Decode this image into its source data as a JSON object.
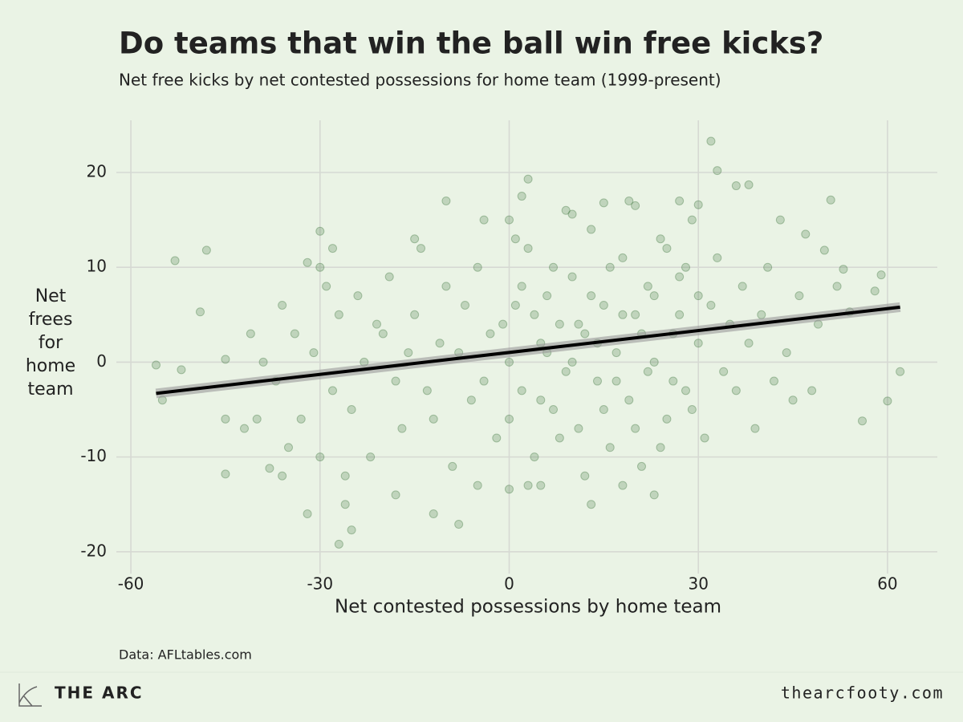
{
  "chart_data": {
    "type": "scatter",
    "title": "Do teams that win the ball win free kicks?",
    "subtitle": "Net free kicks by net contested possessions for home team (1999-present)",
    "x_label": "Net contested possessions by home team",
    "y_label": [
      "Net",
      "frees",
      "for",
      "home",
      "team"
    ],
    "source": "Data: AFLtables.com",
    "brand": "THE ARC",
    "website": "thearcfooty.com",
    "color": "#2e6b2e",
    "grid": true,
    "xlim": [
      -62.3,
      67.9
    ],
    "ylim": [
      -22.3,
      25.5
    ],
    "xticks": [
      -60,
      -30,
      0,
      30,
      60
    ],
    "yticks": [
      -20,
      -10,
      0,
      10,
      20
    ],
    "x": [
      -56,
      -53,
      -52,
      -55,
      -48,
      -49,
      -45,
      -45,
      -45,
      -38,
      -36,
      -32,
      -27,
      -25,
      -8,
      3,
      33,
      32,
      51,
      62,
      60,
      56,
      59,
      58,
      36,
      38,
      -30,
      -32,
      -20,
      -18,
      -15,
      -12,
      -10,
      -8,
      -6,
      -5,
      -3,
      -2,
      0,
      1,
      2,
      3,
      4,
      5,
      6,
      7,
      8,
      9,
      10,
      11,
      12,
      13,
      14,
      15,
      16,
      17,
      18,
      19,
      20,
      21,
      22,
      23,
      24,
      25,
      26,
      27,
      28,
      29,
      30,
      31,
      32,
      33,
      34,
      35,
      -25,
      -24,
      -23,
      -22,
      -21,
      -19,
      -17,
      -16,
      -14,
      -13,
      -11,
      -9,
      -7,
      -4,
      -1,
      0,
      1,
      2,
      3,
      4,
      5,
      6,
      7,
      8,
      9,
      10,
      11,
      12,
      13,
      14,
      15,
      16,
      17,
      18,
      19,
      20,
      21,
      22,
      23,
      24,
      25,
      26,
      27,
      28,
      29,
      30,
      -28,
      -27,
      -26,
      -29,
      -31,
      -33,
      -34,
      -35,
      -36,
      -37,
      -39,
      -40,
      -41,
      -42,
      -30,
      -30,
      -28,
      -26,
      36,
      37,
      38,
      39,
      40,
      41,
      42,
      43,
      44,
      45,
      46,
      47,
      48,
      49,
      50,
      52,
      53,
      54,
      -5,
      0,
      5,
      13,
      18,
      23,
      -12,
      -18,
      -15,
      -10,
      0,
      10,
      15,
      20,
      27,
      30,
      -4,
      2
    ],
    "values": [
      -0.3,
      10.7,
      -0.8,
      -4,
      11.8,
      5.3,
      0.3,
      -11.8,
      -6,
      -11.2,
      -12,
      -16,
      -19.2,
      -17.7,
      -17.1,
      19.3,
      20.2,
      23.3,
      17.1,
      -1,
      -4.1,
      -6.2,
      9.2,
      7.5,
      18.6,
      18.7,
      13.8,
      10.5,
      3,
      -2,
      5,
      -6,
      8,
      1,
      -4,
      10,
      3,
      -8,
      0,
      6,
      -3,
      12,
      -10,
      2,
      7,
      -5,
      4,
      -1,
      9,
      -7,
      3,
      14,
      -2,
      6,
      -9,
      1,
      11,
      -4,
      5,
      -11,
      8,
      0,
      13,
      -6,
      3,
      9,
      -3,
      15,
      2,
      -8,
      6,
      11,
      -1,
      4,
      -5,
      7,
      0,
      -10,
      4,
      9,
      -7,
      1,
      12,
      -3,
      2,
      -11,
      6,
      -2,
      4,
      -6,
      13,
      8,
      -13,
      5,
      -4,
      1,
      10,
      -8,
      16,
      0,
      4,
      -12,
      7,
      2,
      -5,
      10,
      -2,
      5,
      17,
      -7,
      3,
      -1,
      7,
      -9,
      12,
      -2,
      5,
      10,
      -5,
      7,
      -3,
      5,
      -12,
      8,
      1,
      -6,
      3,
      -9,
      6,
      -2,
      0,
      -6,
      3,
      -7,
      -10,
      10,
      12,
      -15,
      -3,
      8,
      2,
      -7,
      5,
      10,
      -2,
      15,
      1,
      -4,
      7,
      13.5,
      -3,
      4,
      11.8,
      8,
      9.8,
      5.3,
      -13,
      -13.4,
      -13,
      -15,
      -13,
      -14,
      -16,
      -14,
      13,
      17,
      15,
      15.6,
      16.8,
      16.5,
      17,
      16.6,
      15,
      17.5
    ],
    "trend": {
      "x": [
        -56,
        62
      ],
      "values": [
        -3.3,
        5.8
      ],
      "color": "#000000"
    }
  }
}
